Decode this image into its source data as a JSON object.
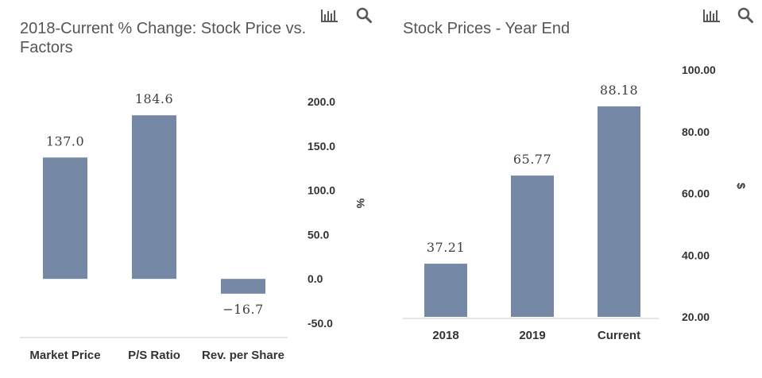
{
  "toolbar": {
    "chart_icon": "bar-chart-icon",
    "zoom_icon": "magnifier-icon",
    "icon_color": "#595959"
  },
  "colors": {
    "bar": "#7588a5",
    "axis_line": "#cccccc"
  },
  "chart_data": [
    {
      "type": "bar",
      "title": "2018-Current % Change: Stock Price vs. Factors",
      "categories": [
        "Market Price",
        "P/S Ratio",
        "Rev. per Share"
      ],
      "values": [
        137.0,
        184.6,
        -16.7
      ],
      "value_labels": [
        "137.0",
        "184.6",
        "−16.7"
      ],
      "xlabel": "",
      "ylabel": "%",
      "ylim": [
        -50,
        200
      ],
      "yticks": [
        200,
        150,
        100,
        50,
        0,
        -50
      ],
      "ytick_labels": [
        "200.0",
        "150.0",
        "100.0",
        "50.0",
        "0.0",
        "-50.0"
      ],
      "y_axis_side": "right",
      "grid": false,
      "legend": "none"
    },
    {
      "type": "bar",
      "title": "Stock Prices - Year End",
      "categories": [
        "2018",
        "2019",
        "Current"
      ],
      "values": [
        37.21,
        65.77,
        88.18
      ],
      "value_labels": [
        "37.21",
        "65.77",
        "88.18"
      ],
      "xlabel": "",
      "ylabel": "$",
      "ylim": [
        20,
        100
      ],
      "yticks": [
        100,
        80,
        60,
        40,
        20
      ],
      "ytick_labels": [
        "100.00",
        "80.00",
        "60.00",
        "40.00",
        "20.00"
      ],
      "y_axis_side": "right",
      "grid": false,
      "legend": "none"
    }
  ]
}
